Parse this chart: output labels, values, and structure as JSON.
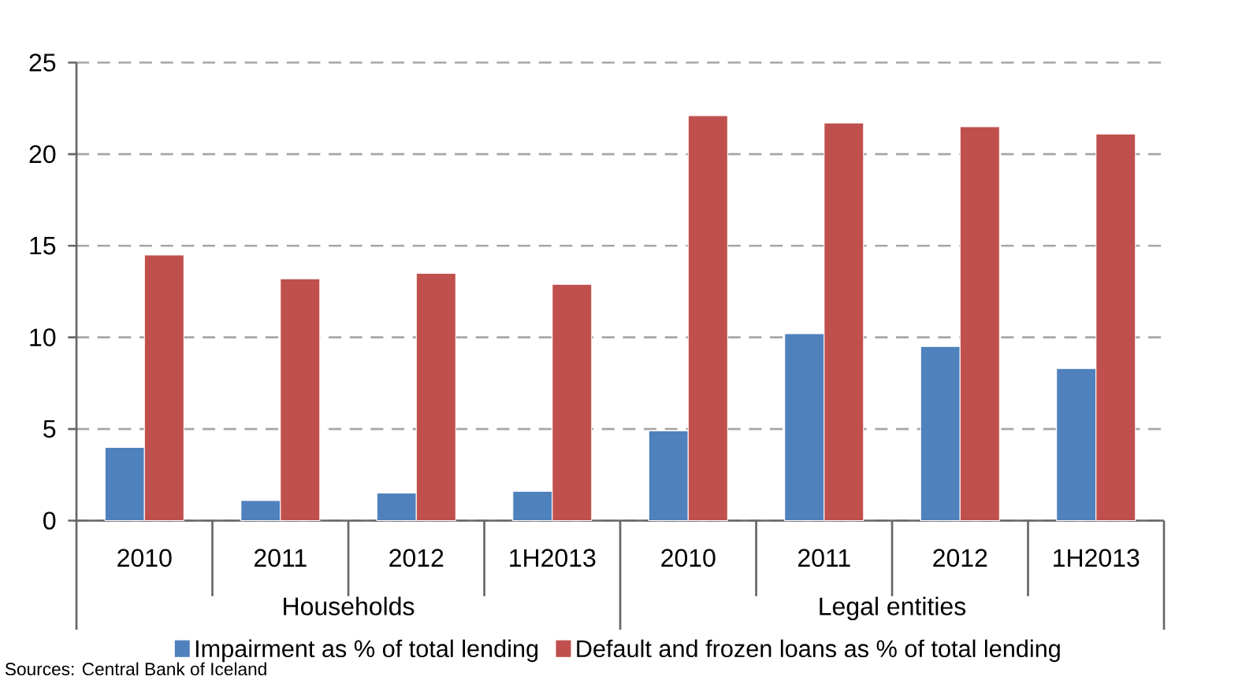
{
  "chart_data": {
    "type": "bar",
    "categories": [
      "2010",
      "2011",
      "2012",
      "1H2013",
      "2010",
      "2011",
      "2012",
      "1H2013"
    ],
    "series": [
      {
        "name": "Impairment as % of total lending",
        "color": "#4f81bd",
        "values": [
          4.0,
          1.1,
          1.5,
          1.6,
          4.9,
          10.2,
          9.5,
          8.3
        ]
      },
      {
        "name": "Default and frozen loans as % of total lending",
        "color": "#c0504d",
        "values": [
          14.5,
          13.2,
          13.5,
          12.9,
          22.1,
          21.7,
          21.5,
          21.1
        ]
      }
    ],
    "ylim": [
      0,
      25
    ],
    "yticks": [
      0,
      5,
      10,
      15,
      20,
      25
    ],
    "grid": "y",
    "legend": "bottom",
    "annotations": [
      "Households",
      "Legal entities",
      "Sources:  Central Bank of Iceland"
    ]
  }
}
